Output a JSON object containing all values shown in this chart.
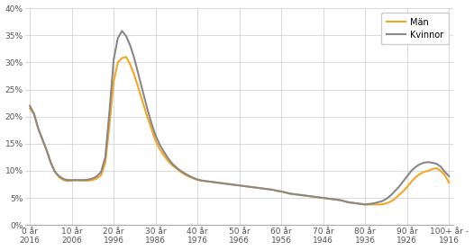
{
  "x_labels": [
    "0 år\n2016",
    "10 år\n2006",
    "20 år\n1996",
    "30 år\n1986",
    "40 år\n1976",
    "50 år\n1966",
    "60 år\n1956",
    "70 år\n1946",
    "80 år\n1936",
    "90 år\n1926",
    "100+ år -\n1916"
  ],
  "x_positions": [
    0,
    10,
    20,
    30,
    40,
    50,
    60,
    70,
    80,
    90,
    100
  ],
  "man_color": "#F5A623",
  "kvinnor_color": "#888888",
  "legend_man": "Män",
  "legend_kvinnor": "Kvinnor",
  "ylim": [
    0,
    0.4
  ],
  "yticks": [
    0.0,
    0.05,
    0.1,
    0.15,
    0.2,
    0.25,
    0.3,
    0.35,
    0.4
  ],
  "man_data": [
    [
      0,
      0.215
    ],
    [
      1,
      0.205
    ],
    [
      2,
      0.178
    ],
    [
      3,
      0.158
    ],
    [
      4,
      0.138
    ],
    [
      5,
      0.115
    ],
    [
      6,
      0.098
    ],
    [
      7,
      0.088
    ],
    [
      8,
      0.083
    ],
    [
      9,
      0.081
    ],
    [
      10,
      0.082
    ],
    [
      11,
      0.083
    ],
    [
      12,
      0.082
    ],
    [
      13,
      0.082
    ],
    [
      14,
      0.082
    ],
    [
      15,
      0.083
    ],
    [
      16,
      0.086
    ],
    [
      17,
      0.092
    ],
    [
      18,
      0.115
    ],
    [
      19,
      0.185
    ],
    [
      20,
      0.265
    ],
    [
      21,
      0.3
    ],
    [
      22,
      0.308
    ],
    [
      23,
      0.31
    ],
    [
      24,
      0.295
    ],
    [
      25,
      0.275
    ],
    [
      26,
      0.25
    ],
    [
      27,
      0.225
    ],
    [
      28,
      0.2
    ],
    [
      29,
      0.178
    ],
    [
      30,
      0.155
    ],
    [
      31,
      0.14
    ],
    [
      32,
      0.128
    ],
    [
      33,
      0.118
    ],
    [
      34,
      0.11
    ],
    [
      35,
      0.104
    ],
    [
      36,
      0.098
    ],
    [
      37,
      0.093
    ],
    [
      38,
      0.089
    ],
    [
      39,
      0.086
    ],
    [
      40,
      0.083
    ],
    [
      41,
      0.082
    ],
    [
      42,
      0.081
    ],
    [
      43,
      0.08
    ],
    [
      44,
      0.079
    ],
    [
      45,
      0.078
    ],
    [
      46,
      0.077
    ],
    [
      47,
      0.076
    ],
    [
      48,
      0.075
    ],
    [
      49,
      0.074
    ],
    [
      50,
      0.073
    ],
    [
      51,
      0.072
    ],
    [
      52,
      0.071
    ],
    [
      53,
      0.07
    ],
    [
      54,
      0.069
    ],
    [
      55,
      0.068
    ],
    [
      56,
      0.067
    ],
    [
      57,
      0.066
    ],
    [
      58,
      0.065
    ],
    [
      59,
      0.063
    ],
    [
      60,
      0.062
    ],
    [
      61,
      0.06
    ],
    [
      62,
      0.058
    ],
    [
      63,
      0.057
    ],
    [
      64,
      0.056
    ],
    [
      65,
      0.055
    ],
    [
      66,
      0.054
    ],
    [
      67,
      0.053
    ],
    [
      68,
      0.052
    ],
    [
      69,
      0.051
    ],
    [
      70,
      0.05
    ],
    [
      71,
      0.049
    ],
    [
      72,
      0.048
    ],
    [
      73,
      0.047
    ],
    [
      74,
      0.046
    ],
    [
      75,
      0.044
    ],
    [
      76,
      0.042
    ],
    [
      77,
      0.041
    ],
    [
      78,
      0.04
    ],
    [
      79,
      0.039
    ],
    [
      80,
      0.038
    ],
    [
      81,
      0.038
    ],
    [
      82,
      0.038
    ],
    [
      83,
      0.038
    ],
    [
      84,
      0.038
    ],
    [
      85,
      0.04
    ],
    [
      86,
      0.043
    ],
    [
      87,
      0.048
    ],
    [
      88,
      0.055
    ],
    [
      89,
      0.062
    ],
    [
      90,
      0.07
    ],
    [
      91,
      0.08
    ],
    [
      92,
      0.088
    ],
    [
      93,
      0.094
    ],
    [
      94,
      0.098
    ],
    [
      95,
      0.1
    ],
    [
      96,
      0.103
    ],
    [
      97,
      0.105
    ],
    [
      98,
      0.1
    ],
    [
      99,
      0.092
    ],
    [
      100,
      0.078
    ]
  ],
  "kvinnor_data": [
    [
      0,
      0.22
    ],
    [
      1,
      0.205
    ],
    [
      2,
      0.178
    ],
    [
      3,
      0.158
    ],
    [
      4,
      0.138
    ],
    [
      5,
      0.115
    ],
    [
      6,
      0.098
    ],
    [
      7,
      0.09
    ],
    [
      8,
      0.085
    ],
    [
      9,
      0.083
    ],
    [
      10,
      0.083
    ],
    [
      11,
      0.083
    ],
    [
      12,
      0.083
    ],
    [
      13,
      0.083
    ],
    [
      14,
      0.084
    ],
    [
      15,
      0.086
    ],
    [
      16,
      0.09
    ],
    [
      17,
      0.098
    ],
    [
      18,
      0.125
    ],
    [
      19,
      0.21
    ],
    [
      20,
      0.305
    ],
    [
      21,
      0.345
    ],
    [
      22,
      0.358
    ],
    [
      23,
      0.348
    ],
    [
      24,
      0.33
    ],
    [
      25,
      0.305
    ],
    [
      26,
      0.275
    ],
    [
      27,
      0.245
    ],
    [
      28,
      0.215
    ],
    [
      29,
      0.188
    ],
    [
      30,
      0.165
    ],
    [
      31,
      0.148
    ],
    [
      32,
      0.135
    ],
    [
      33,
      0.123
    ],
    [
      34,
      0.113
    ],
    [
      35,
      0.106
    ],
    [
      36,
      0.1
    ],
    [
      37,
      0.095
    ],
    [
      38,
      0.091
    ],
    [
      39,
      0.087
    ],
    [
      40,
      0.084
    ],
    [
      41,
      0.082
    ],
    [
      42,
      0.081
    ],
    [
      43,
      0.08
    ],
    [
      44,
      0.079
    ],
    [
      45,
      0.078
    ],
    [
      46,
      0.077
    ],
    [
      47,
      0.076
    ],
    [
      48,
      0.075
    ],
    [
      49,
      0.074
    ],
    [
      50,
      0.073
    ],
    [
      51,
      0.072
    ],
    [
      52,
      0.071
    ],
    [
      53,
      0.07
    ],
    [
      54,
      0.069
    ],
    [
      55,
      0.068
    ],
    [
      56,
      0.067
    ],
    [
      57,
      0.066
    ],
    [
      58,
      0.065
    ],
    [
      59,
      0.063
    ],
    [
      60,
      0.062
    ],
    [
      61,
      0.06
    ],
    [
      62,
      0.058
    ],
    [
      63,
      0.057
    ],
    [
      64,
      0.056
    ],
    [
      65,
      0.055
    ],
    [
      66,
      0.054
    ],
    [
      67,
      0.053
    ],
    [
      68,
      0.052
    ],
    [
      69,
      0.051
    ],
    [
      70,
      0.05
    ],
    [
      71,
      0.049
    ],
    [
      72,
      0.048
    ],
    [
      73,
      0.047
    ],
    [
      74,
      0.046
    ],
    [
      75,
      0.044
    ],
    [
      76,
      0.042
    ],
    [
      77,
      0.041
    ],
    [
      78,
      0.04
    ],
    [
      79,
      0.039
    ],
    [
      80,
      0.038
    ],
    [
      81,
      0.039
    ],
    [
      82,
      0.04
    ],
    [
      83,
      0.042
    ],
    [
      84,
      0.044
    ],
    [
      85,
      0.048
    ],
    [
      86,
      0.054
    ],
    [
      87,
      0.062
    ],
    [
      88,
      0.07
    ],
    [
      89,
      0.08
    ],
    [
      90,
      0.09
    ],
    [
      91,
      0.1
    ],
    [
      92,
      0.107
    ],
    [
      93,
      0.112
    ],
    [
      94,
      0.115
    ],
    [
      95,
      0.116
    ],
    [
      96,
      0.115
    ],
    [
      97,
      0.113
    ],
    [
      98,
      0.108
    ],
    [
      99,
      0.098
    ],
    [
      100,
      0.09
    ]
  ]
}
